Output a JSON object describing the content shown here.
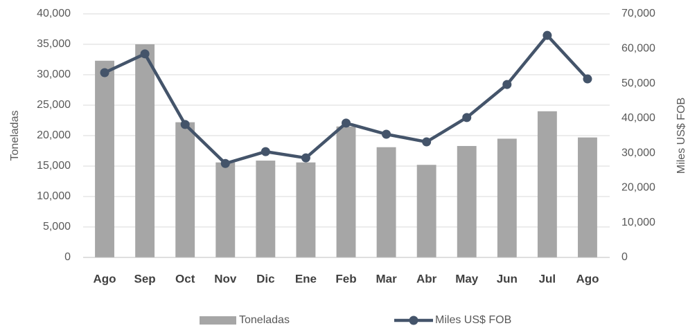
{
  "chart_data": {
    "type": "combo",
    "categories": [
      "Ago",
      "Sep",
      "Oct",
      "Nov",
      "Dic",
      "Ene",
      "Feb",
      "Mar",
      "Abr",
      "May",
      "Jun",
      "Jul",
      "Ago"
    ],
    "series": [
      {
        "name": "Toneladas",
        "type": "bar",
        "color": "#a6a6a6",
        "values": [
          32300,
          35000,
          22200,
          15600,
          15900,
          15600,
          21500,
          18100,
          15200,
          18300,
          19500,
          24000,
          19700
        ]
      },
      {
        "name": "Miles US$ FOB",
        "type": "line",
        "axis": "y2",
        "color": "#44546a",
        "values": [
          53100,
          58500,
          38200,
          27000,
          30400,
          28600,
          38600,
          35400,
          33200,
          40200,
          49700,
          63800,
          51300
        ]
      }
    ],
    "ylabel": "Toneladas",
    "y2label": "Miles US$ FOB",
    "ylim": [
      0,
      40000
    ],
    "yticks": [
      0,
      {
        "value": 5000,
        "label": "5,000"
      },
      {
        "value": 10000,
        "label": "10,000"
      },
      {
        "value": 15000,
        "label": "15,000"
      },
      {
        "value": 20000,
        "label": "20,000"
      },
      {
        "value": 25000,
        "label": "25,000"
      },
      {
        "value": 30000,
        "label": "30,000"
      },
      {
        "value": 35000,
        "label": "35,000"
      },
      {
        "value": 40000,
        "label": "40,000"
      }
    ],
    "y2lim": [
      0,
      70000
    ],
    "y2ticks": [
      0,
      {
        "value": 10000,
        "label": "10,000"
      },
      {
        "value": 20000,
        "label": "20,000"
      },
      {
        "value": 30000,
        "label": "30,000"
      },
      {
        "value": 40000,
        "label": "40,000"
      },
      {
        "value": 50000,
        "label": "50,000"
      },
      {
        "value": 60000,
        "label": "60,000"
      },
      {
        "value": 70000,
        "label": "70,000"
      }
    ],
    "grid": true,
    "legend": "bottom"
  }
}
